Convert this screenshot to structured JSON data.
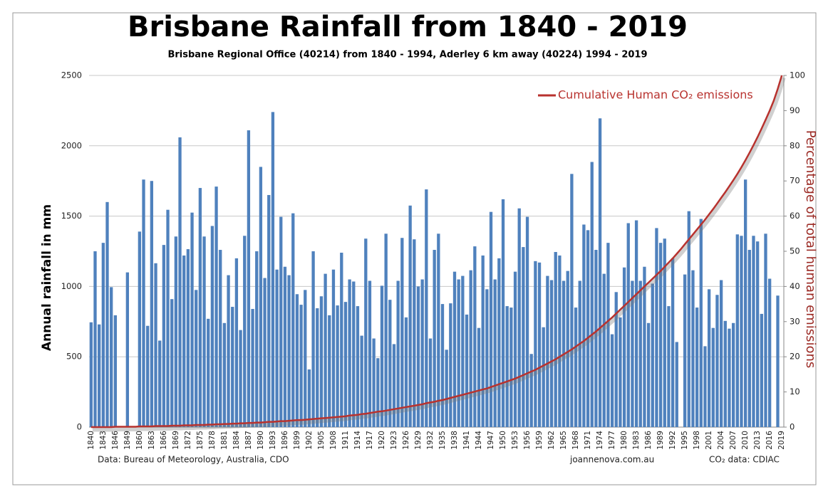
{
  "chart_data": {
    "type": "bar",
    "title": "Brisbane Rainfall from 1840 - 2019",
    "subtitle": "Brisbane Regional Office  (40214) from 1840 - 1994, Aderley 6 km away (40224) 1994 - 2019",
    "y_label": "Annual rainfall in mm",
    "y2_label": "Percentage of total human emissions",
    "notes": [
      "Data: Bureau of Meteorology, Australia, CDO",
      "joannenova.com.au",
      "CO₂ data: CDIAC"
    ],
    "categories": [
      "1840",
      null,
      null,
      "1843",
      null,
      null,
      "1846",
      null,
      null,
      "1849",
      null,
      null,
      "1860",
      null,
      null,
      "1863",
      null,
      null,
      "1866",
      null,
      null,
      "1869",
      null,
      null,
      "1872",
      null,
      null,
      "1875",
      null,
      null,
      "1878",
      null,
      null,
      "1881",
      null,
      null,
      "1884",
      null,
      null,
      "1887",
      null,
      null,
      "1890",
      null,
      null,
      "1893",
      null,
      null,
      "1896",
      null,
      null,
      "1899",
      null,
      null,
      "1902",
      null,
      null,
      "1905",
      null,
      null,
      "1908",
      null,
      null,
      "1911",
      null,
      null,
      "1914",
      null,
      null,
      "1917",
      null,
      null,
      "1920",
      null,
      null,
      "1923",
      null,
      null,
      "1926",
      null,
      null,
      "1929",
      null,
      null,
      "1932",
      null,
      null,
      "1935",
      null,
      null,
      "1938",
      null,
      null,
      "1941",
      null,
      null,
      "1944",
      null,
      null,
      "1947",
      null,
      null,
      "1950",
      null,
      null,
      "1953",
      null,
      null,
      "1956",
      null,
      null,
      "1959",
      null,
      null,
      "1962",
      null,
      null,
      "1965",
      null,
      null,
      "1968",
      null,
      null,
      "1971",
      null,
      null,
      "1974",
      null,
      null,
      "1977",
      null,
      null,
      "1980",
      null,
      null,
      "1983",
      null,
      null,
      "1986",
      null,
      null,
      "1989",
      null,
      null,
      "1992",
      null,
      null,
      "1995",
      null,
      null,
      "1998",
      null,
      null,
      "2001",
      null,
      null,
      "2004",
      null,
      null,
      "2007",
      null,
      null,
      "2010",
      null,
      null,
      "2013",
      null,
      null,
      "2016",
      null,
      null,
      "2019"
    ],
    "series": [
      {
        "name": "Annual rainfall",
        "type": "bar",
        "color": "#4f81bd",
        "values": [
          745,
          1250,
          730,
          1310,
          1600,
          995,
          795,
          null,
          null,
          1100,
          null,
          null,
          1390,
          1760,
          720,
          1750,
          1165,
          615,
          1295,
          1545,
          910,
          1355,
          2060,
          1220,
          1265,
          1525,
          975,
          1700,
          1355,
          770,
          1430,
          1710,
          1260,
          740,
          1080,
          855,
          1200,
          690,
          1360,
          2110,
          840,
          1250,
          1850,
          1060,
          1650,
          2240,
          1120,
          1495,
          1140,
          1080,
          1520,
          945,
          870,
          975,
          410,
          1250,
          845,
          930,
          1090,
          795,
          1120,
          865,
          1240,
          890,
          1050,
          1035,
          860,
          650,
          1340,
          1040,
          630,
          490,
          1005,
          1375,
          905,
          590,
          1040,
          1345,
          780,
          1575,
          1335,
          1000,
          1050,
          1690,
          630,
          1260,
          1375,
          875,
          550,
          880,
          1105,
          1050,
          1075,
          800,
          1115,
          1285,
          705,
          1220,
          980,
          1530,
          1050,
          1200,
          1620,
          860,
          850,
          1105,
          1555,
          1280,
          1495,
          520,
          1180,
          1170,
          710,
          1075,
          1045,
          1245,
          1220,
          1040,
          1110,
          1800,
          850,
          1040,
          1440,
          1400,
          1885,
          1260,
          2195,
          1090,
          1310,
          660,
          960,
          780,
          1135,
          1450,
          1040,
          1470,
          1040,
          1140,
          740,
          1020,
          1415,
          1310,
          1340,
          860,
          1200,
          605,
          null,
          1085,
          1535,
          1115,
          850,
          1480,
          575,
          980,
          705,
          940,
          1045,
          755,
          700,
          740,
          1370,
          1360,
          1760,
          1260,
          1360,
          1320,
          805,
          1375,
          1055,
          null,
          935,
          null
        ]
      },
      {
        "name": "Cumulative Human CO₂ emissions",
        "type": "line",
        "axis": "y2",
        "color": "#b8322e",
        "values": [
          0,
          0,
          0,
          0,
          0,
          0,
          0.1,
          0.1,
          0.1,
          0.1,
          0.1,
          0.1,
          0.2,
          0.2,
          0.2,
          0.2,
          0.3,
          0.3,
          0.3,
          0.3,
          0.4,
          0.4,
          0.4,
          0.5,
          0.5,
          0.5,
          0.6,
          0.6,
          0.6,
          0.7,
          0.7,
          0.8,
          0.8,
          0.9,
          0.9,
          1,
          1,
          1.1,
          1.1,
          1.2,
          1.2,
          1.3,
          1.3,
          1.4,
          1.5,
          1.5,
          1.6,
          1.7,
          1.7,
          1.8,
          1.9,
          2,
          2,
          2.1,
          2.2,
          2.3,
          2.4,
          2.5,
          2.6,
          2.7,
          2.8,
          2.9,
          3,
          3.1,
          3.3,
          3.4,
          3.5,
          3.7,
          3.8,
          4,
          4.2,
          4.4,
          4.5,
          4.7,
          4.9,
          5.1,
          5.3,
          5.5,
          5.7,
          5.9,
          6.1,
          6.3,
          6.5,
          6.8,
          7,
          7.2,
          7.5,
          7.7,
          8,
          8.3,
          8.6,
          8.9,
          9.2,
          9.5,
          9.8,
          10.1,
          10.4,
          10.7,
          11,
          11.4,
          11.8,
          12.2,
          12.6,
          13,
          13.4,
          13.8,
          14.3,
          14.8,
          15.3,
          15.8,
          16.3,
          16.9,
          17.5,
          18.1,
          18.7,
          19.3,
          20,
          20.7,
          21.4,
          22.1,
          22.9,
          23.7,
          24.5,
          25.4,
          26.3,
          27.2,
          28.2,
          29.2,
          30.2,
          31.2,
          32.3,
          33.4,
          34.5,
          35.6,
          36.7,
          37.8,
          38.9,
          40,
          41.1,
          42.2,
          43.3,
          44.4,
          45.6,
          46.8,
          48,
          49.3,
          50.6,
          52,
          53.4,
          54.8,
          56.2,
          57.6,
          59,
          60.5,
          62,
          63.6,
          65.2,
          66.8,
          68.5,
          70.2,
          72,
          73.9,
          75.9,
          78,
          80.2,
          82.5,
          84.9,
          87.4,
          90,
          92.8,
          96.2,
          100
        ]
      }
    ],
    "ylim": [
      0,
      2500
    ],
    "yticks": [
      0,
      500,
      1000,
      1500,
      2000,
      2500
    ],
    "y2lim": [
      0,
      100
    ],
    "y2ticks": [
      0,
      10,
      20,
      30,
      40,
      50,
      60,
      70,
      80,
      90,
      100
    ],
    "grid": true,
    "legend": "top-right"
  }
}
